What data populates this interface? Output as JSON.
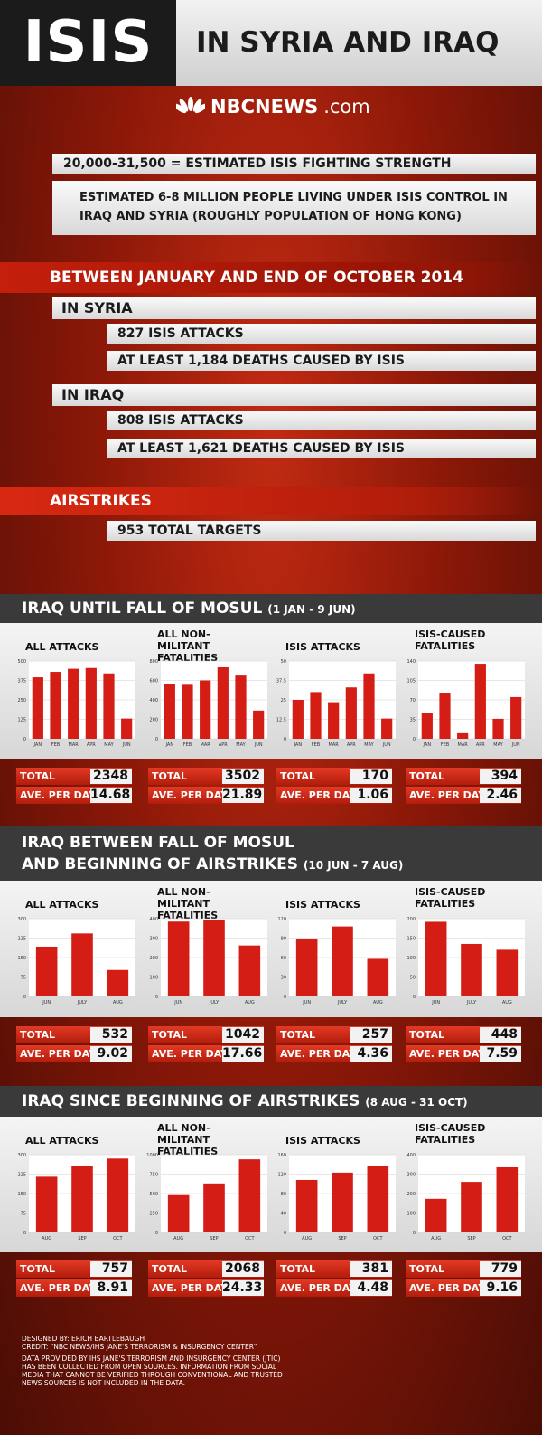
{
  "header": {
    "title_big": "ISIS",
    "title_rest": "IN SYRIA AND IRAQ",
    "brand": "NBCNEWS",
    "brand_suffix": ".com"
  },
  "facts": {
    "strength": "20,000-31,500 = ESTIMATED ISIS FIGHTING STRENGTH",
    "population_line1": "ESTIMATED 6-8 MILLION PEOPLE LIVING UNDER ISIS CONTROL IN",
    "population_line2": "IRAQ AND SYRIA (ROUGHLY POPULATION OF HONG KONG)"
  },
  "period": {
    "heading": "BETWEEN JANUARY AND END OF OCTOBER 2014",
    "syria_label": "IN SYRIA",
    "syria_attacks": "827 ISIS ATTACKS",
    "syria_deaths": "AT LEAST 1,184 DEATHS CAUSED BY ISIS",
    "iraq_label": "IN IRAQ",
    "iraq_attacks": "808 ISIS ATTACKS",
    "iraq_deaths": "AT LEAST 1,621 DEATHS CAUSED BY ISIS",
    "airstrikes_label": "AIRSTRIKES",
    "airstrikes_targets": "953 TOTAL TARGETS"
  },
  "labels": {
    "total": "TOTAL",
    "ave": "AVE. PER DAY"
  },
  "sections": [
    {
      "title": "IRAQ UNTIL FALL OF MOSUL",
      "title2": "",
      "dates": "(1 JAN - 9 JUN)",
      "totals": [
        {
          "total": "2348",
          "ave": "14.68"
        },
        {
          "total": "3502",
          "ave": "21.89"
        },
        {
          "total": "170",
          "ave": "1.06"
        },
        {
          "total": "394",
          "ave": "2.46"
        }
      ]
    },
    {
      "title": "IRAQ BETWEEN FALL OF MOSUL",
      "title2": "AND BEGINNING OF AIRSTRIKES",
      "dates": "(10 JUN - 7 AUG)",
      "totals": [
        {
          "total": "532",
          "ave": "9.02"
        },
        {
          "total": "1042",
          "ave": "17.66"
        },
        {
          "total": "257",
          "ave": "4.36"
        },
        {
          "total": "448",
          "ave": "7.59"
        }
      ]
    },
    {
      "title": "IRAQ SINCE BEGINNING OF AIRSTRIKES",
      "title2": "",
      "dates": "(8 AUG - 31 OCT)",
      "totals": [
        {
          "total": "757",
          "ave": "8.91"
        },
        {
          "total": "2068",
          "ave": "24.33"
        },
        {
          "total": "381",
          "ave": "4.48"
        },
        {
          "total": "779",
          "ave": "9.16"
        }
      ]
    }
  ],
  "chart_data": [
    {
      "type": "bar",
      "title": "ALL ATTACKS",
      "categories": [
        "JAN",
        "FEB",
        "MAR",
        "APR",
        "MAY",
        "JUN"
      ],
      "values": [
        395,
        430,
        450,
        455,
        420,
        130
      ],
      "ylim": [
        0,
        500
      ],
      "yticks": [
        "0",
        "125",
        "250",
        "375",
        "500"
      ]
    },
    {
      "type": "bar",
      "title": "ALL NON-MILITANT FATALITIES",
      "categories": [
        "JAN",
        "FEB",
        "MAR",
        "APR",
        "MAY",
        "JUN"
      ],
      "values": [
        565,
        555,
        600,
        735,
        650,
        290
      ],
      "ylim": [
        0,
        800
      ],
      "yticks": [
        "0",
        "200",
        "400",
        "600",
        "800"
      ]
    },
    {
      "type": "bar",
      "title": "ISIS ATTACKS",
      "categories": [
        "JAN",
        "FEB",
        "MAR",
        "APR",
        "MAY",
        "JUN"
      ],
      "values": [
        25,
        30,
        23.5,
        33,
        42,
        13
      ],
      "ylim": [
        0,
        50
      ],
      "yticks": [
        "0",
        "12.5",
        "25",
        "37.5",
        "50"
      ]
    },
    {
      "type": "bar",
      "title": "ISIS-CAUSED FATALITIES",
      "categories": [
        "JAN",
        "FEB",
        "MAR",
        "APR",
        "MAY",
        "JUN"
      ],
      "values": [
        47,
        83,
        10,
        135,
        36,
        75
      ],
      "ylim": [
        0,
        140
      ],
      "yticks": [
        "0",
        "35",
        "70",
        "105",
        "140"
      ]
    },
    {
      "type": "bar",
      "title": "ALL ATTACKS",
      "categories": [
        "JUN",
        "JULY",
        "AUG"
      ],
      "values": [
        192,
        243,
        102
      ],
      "ylim": [
        0,
        300
      ],
      "yticks": [
        "0",
        "75",
        "150",
        "225",
        "300"
      ]
    },
    {
      "type": "bar",
      "title": "ALL NON-MILITANT FATALITIES",
      "categories": [
        "JUN",
        "JULY",
        "AUG"
      ],
      "values": [
        385,
        393,
        262
      ],
      "ylim": [
        0,
        400
      ],
      "yticks": [
        "0",
        "100",
        "200",
        "300",
        "400"
      ]
    },
    {
      "type": "bar",
      "title": "ISIS ATTACKS",
      "categories": [
        "JUN",
        "JULY",
        "AUG"
      ],
      "values": [
        89,
        108,
        58
      ],
      "ylim": [
        0,
        120
      ],
      "yticks": [
        "0",
        "30",
        "60",
        "90",
        "120"
      ]
    },
    {
      "type": "bar",
      "title": "ISIS-CAUSED FATALITIES",
      "categories": [
        "JUN",
        "JULY",
        "AUG"
      ],
      "values": [
        192,
        135,
        120
      ],
      "ylim": [
        0,
        200
      ],
      "yticks": [
        "0",
        "50",
        "100",
        "150",
        "200"
      ]
    },
    {
      "type": "bar",
      "title": "ALL ATTACKS",
      "categories": [
        "AUG",
        "SEP",
        "OCT"
      ],
      "values": [
        215,
        258,
        285
      ],
      "ylim": [
        0,
        300
      ],
      "yticks": [
        "0",
        "75",
        "150",
        "225",
        "300"
      ]
    },
    {
      "type": "bar",
      "title": "ALL NON-MILITANT FATALITIES",
      "categories": [
        "AUG",
        "SEP",
        "OCT"
      ],
      "values": [
        480,
        630,
        940
      ],
      "ylim": [
        0,
        1000
      ],
      "yticks": [
        "0",
        "250",
        "500",
        "750",
        "1000"
      ]
    },
    {
      "type": "bar",
      "title": "ISIS ATTACKS",
      "categories": [
        "AUG",
        "SEP",
        "OCT"
      ],
      "values": [
        108,
        123,
        136
      ],
      "ylim": [
        0,
        160
      ],
      "yticks": [
        "0",
        "40",
        "80",
        "120",
        "160"
      ]
    },
    {
      "type": "bar",
      "title": "ISIS-CAUSED FATALITIES",
      "categories": [
        "AUG",
        "SEP",
        "OCT"
      ],
      "values": [
        173,
        260,
        335
      ],
      "ylim": [
        0,
        400
      ],
      "yticks": [
        "0",
        "100",
        "200",
        "300",
        "400"
      ]
    }
  ],
  "footer": {
    "designed": "DESIGNED BY: ERICH BARTLEBAUGH",
    "credit": "CREDIT: \"NBC NEWS/IHS JANE'S TERRORISM & INSURGENCY CENTER\"",
    "note": "DATA PROVIDED BY IHS JANE'S TERRORISM AND INSURGENCY CENTER (JTIC) HAS BEEN COLLECTED FROM OPEN SOURCES. INFORMATION FROM SOCIAL MEDIA THAT CANNOT BE VERIFIED THROUGH CONVENTIONAL AND TRUSTED NEWS SOURCES IS NOT INCLUDED IN THE DATA."
  }
}
